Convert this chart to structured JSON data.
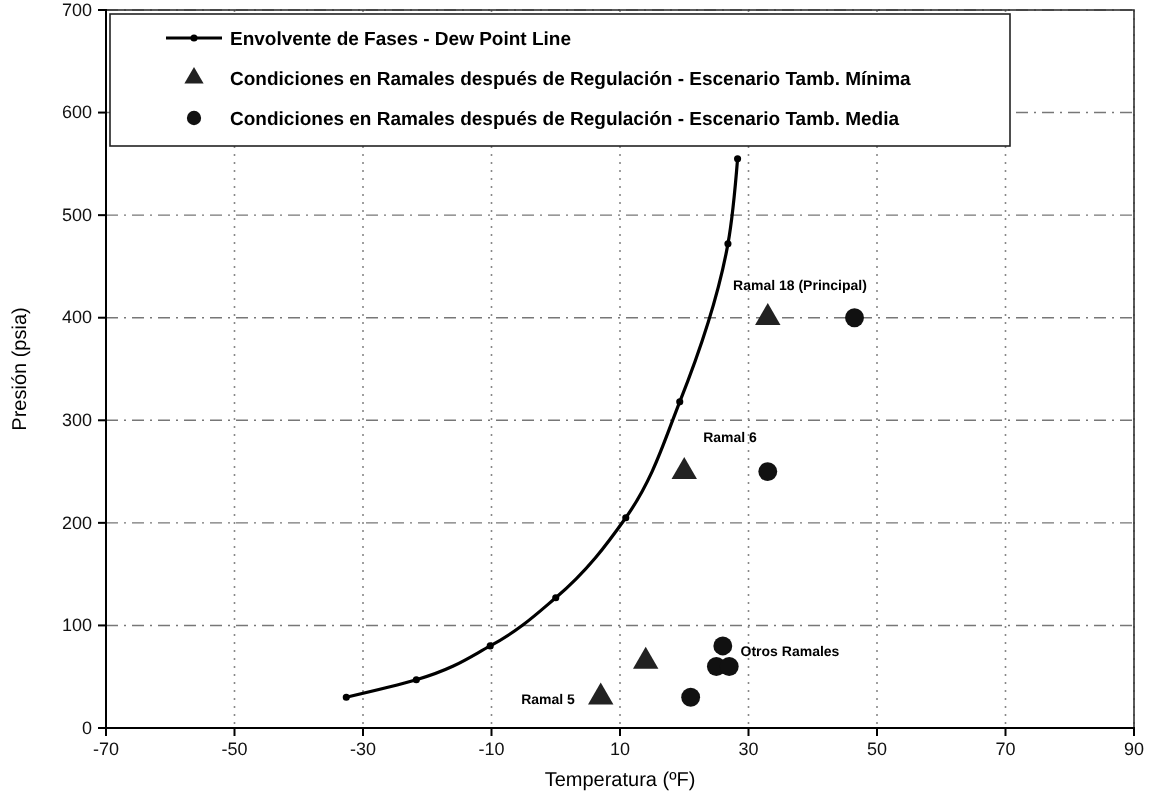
{
  "chart_data": {
    "type": "scatter",
    "xlabel": "Temperatura (ºF)",
    "ylabel": "Presión (psia)",
    "xlim": [
      -70,
      90
    ],
    "xticks": [
      -70,
      -50,
      -30,
      -10,
      10,
      30,
      50,
      70,
      90
    ],
    "ylim": [
      0,
      700
    ],
    "yticks": [
      0,
      100,
      200,
      300,
      400,
      500,
      600,
      700
    ],
    "grid": true,
    "legend": "top",
    "series": [
      {
        "name": "Envolvente de Fases - Dew Point Line",
        "type": "line",
        "color": "#000000",
        "marker": "circle",
        "x": [
          -32.6,
          -21.7,
          -10.2,
          0,
          10.9,
          19.3,
          26.8,
          28.3
        ],
        "values": [
          30,
          47,
          80,
          127,
          205,
          318,
          472,
          555
        ]
      },
      {
        "name": "Condiciones en Ramales después de Regulación - Escenario Tamb. Mínima",
        "marker": "triangle",
        "color": "#222222",
        "x": [
          33,
          20,
          7,
          14
        ],
        "values": [
          400,
          250,
          30,
          65
        ]
      },
      {
        "name": "Condiciones en Ramales después de Regulación - Escenario Tamb. Media",
        "marker": "circle",
        "color": "#111111",
        "x": [
          46.5,
          33,
          21,
          26,
          25,
          27
        ],
        "values": [
          400,
          250,
          30,
          80,
          60,
          60
        ]
      }
    ],
    "annotations": [
      "Ramal 18 (Principal)",
      "Ramal 6",
      "Ramal 5",
      "Otros Ramales"
    ]
  }
}
